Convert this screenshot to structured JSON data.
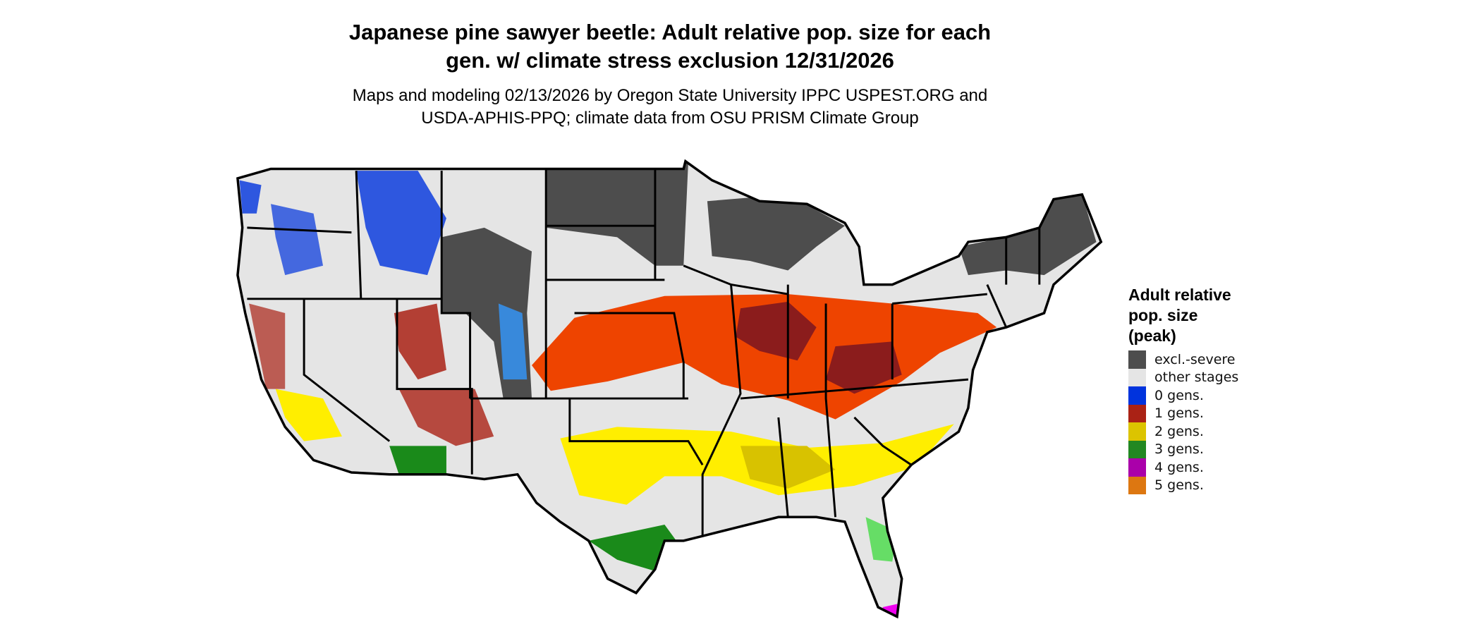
{
  "title_lines": [
    "Japanese pine sawyer beetle: Adult relative pop. size for each",
    "gen. w/ climate stress exclusion 12/31/2026"
  ],
  "subtitle_lines": [
    "Maps and modeling 02/13/2026 by Oregon State University IPPC USPEST.ORG and",
    "USDA-APHIS-PPQ; climate data from OSU PRISM Climate Group"
  ],
  "chart_data": {
    "type": "heatmap",
    "region": "Contiguous United States with state borders",
    "legend_placement": "right",
    "legend": {
      "title_lines": [
        "Adult relative",
        "pop. size",
        "(peak)"
      ],
      "items": [
        {
          "label": "excl.-severe",
          "color": "#4d4d4d"
        },
        {
          "label": "other stages",
          "color": "#e5e5e5"
        },
        {
          "label": "0 gens.",
          "color": "#0033dd"
        },
        {
          "label": "1 gens.",
          "color": "#aa2215"
        },
        {
          "label": "2 gens.",
          "color": "#dcc400"
        },
        {
          "label": "3 gens.",
          "color": "#228822"
        },
        {
          "label": "4 gens.",
          "color": "#aa00aa"
        },
        {
          "label": "5 gens.",
          "color": "#dd7711"
        }
      ]
    }
  }
}
